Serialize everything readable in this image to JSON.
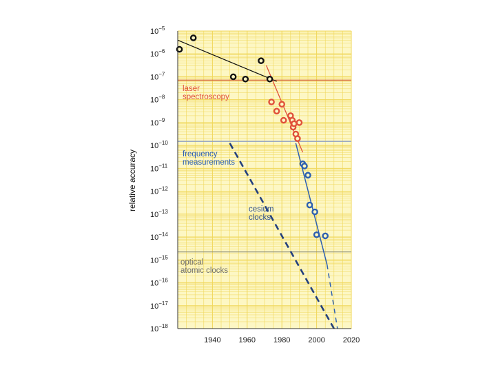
{
  "chart_data": {
    "type": "scatter",
    "title": "",
    "xlabel": "",
    "ylabel": "relative accuracy",
    "log_y": true,
    "xlim": [
      1920,
      2020
    ],
    "ylim_exponent": [
      -18,
      -5
    ],
    "x_ticks": [
      "1940",
      "1960",
      "1980",
      "2000",
      "2020"
    ],
    "y_tick_base": "10",
    "y_ticks": [
      "−5",
      "−6",
      "−7",
      "−8",
      "−9",
      "−10",
      "−11",
      "−12",
      "−13",
      "−14",
      "−15",
      "−16",
      "−17",
      "−18"
    ],
    "grid": true,
    "colors": {
      "background": "#fdf7c4",
      "grid": "#f0d75a",
      "black": "#111111",
      "red": "#e0503a",
      "blue": "#2c5fb0",
      "laser_line": "#d9733a",
      "freq_line": "#8f9fc2",
      "optical_line": "#8c8c76",
      "annotation_gray": "#6f6f6f"
    },
    "points": {
      "black": [
        [
          1921,
          -5.8
        ],
        [
          1929,
          -5.3
        ],
        [
          1952,
          -7.0
        ],
        [
          1959,
          -7.1
        ],
        [
          1968,
          -6.3
        ],
        [
          1973,
          -7.1
        ]
      ],
      "red": [
        [
          1974,
          -8.1
        ],
        [
          1977,
          -8.5
        ],
        [
          1980,
          -8.2
        ],
        [
          1981,
          -8.9
        ],
        [
          1985,
          -8.7
        ],
        [
          1986,
          -8.9
        ],
        [
          1986.5,
          -9.2
        ],
        [
          1987,
          -9.05
        ],
        [
          1988,
          -9.5
        ],
        [
          1989,
          -9.7
        ],
        [
          1990,
          -9.0
        ]
      ],
      "blue": [
        [
          1992,
          -10.8
        ],
        [
          1993,
          -10.9
        ],
        [
          1995,
          -11.3
        ],
        [
          1996,
          -12.6
        ],
        [
          1999,
          -12.9
        ],
        [
          2000,
          -13.9
        ],
        [
          2005,
          -13.95
        ]
      ]
    },
    "lines": {
      "black_trend": [
        [
          1920,
          -5.4
        ],
        [
          1977,
          -7.2
        ]
      ],
      "red_trend": [
        [
          1971,
          -6.5
        ],
        [
          1992,
          -10.3
        ]
      ],
      "blue_trend": [
        [
          1988,
          -9.9
        ],
        [
          2006,
          -15.2
        ]
      ],
      "cesium_clocks": [
        [
          1950,
          -9.9
        ],
        [
          2010,
          -18.0
        ]
      ],
      "blue_extension": [
        [
          2006,
          -15.2
        ],
        [
          2012,
          -18.0
        ]
      ]
    },
    "levels": {
      "laser_spectroscopy": -7.15,
      "frequency_measurements": -9.82,
      "optical_atomic_clocks": -14.65
    },
    "annotations": {
      "laser": [
        "laser",
        "spectroscopy"
      ],
      "frequency": [
        "frequency",
        "measurements"
      ],
      "cesium": [
        "cesium",
        "clocks"
      ],
      "optical": [
        "optical",
        "atomic clocks"
      ]
    }
  }
}
